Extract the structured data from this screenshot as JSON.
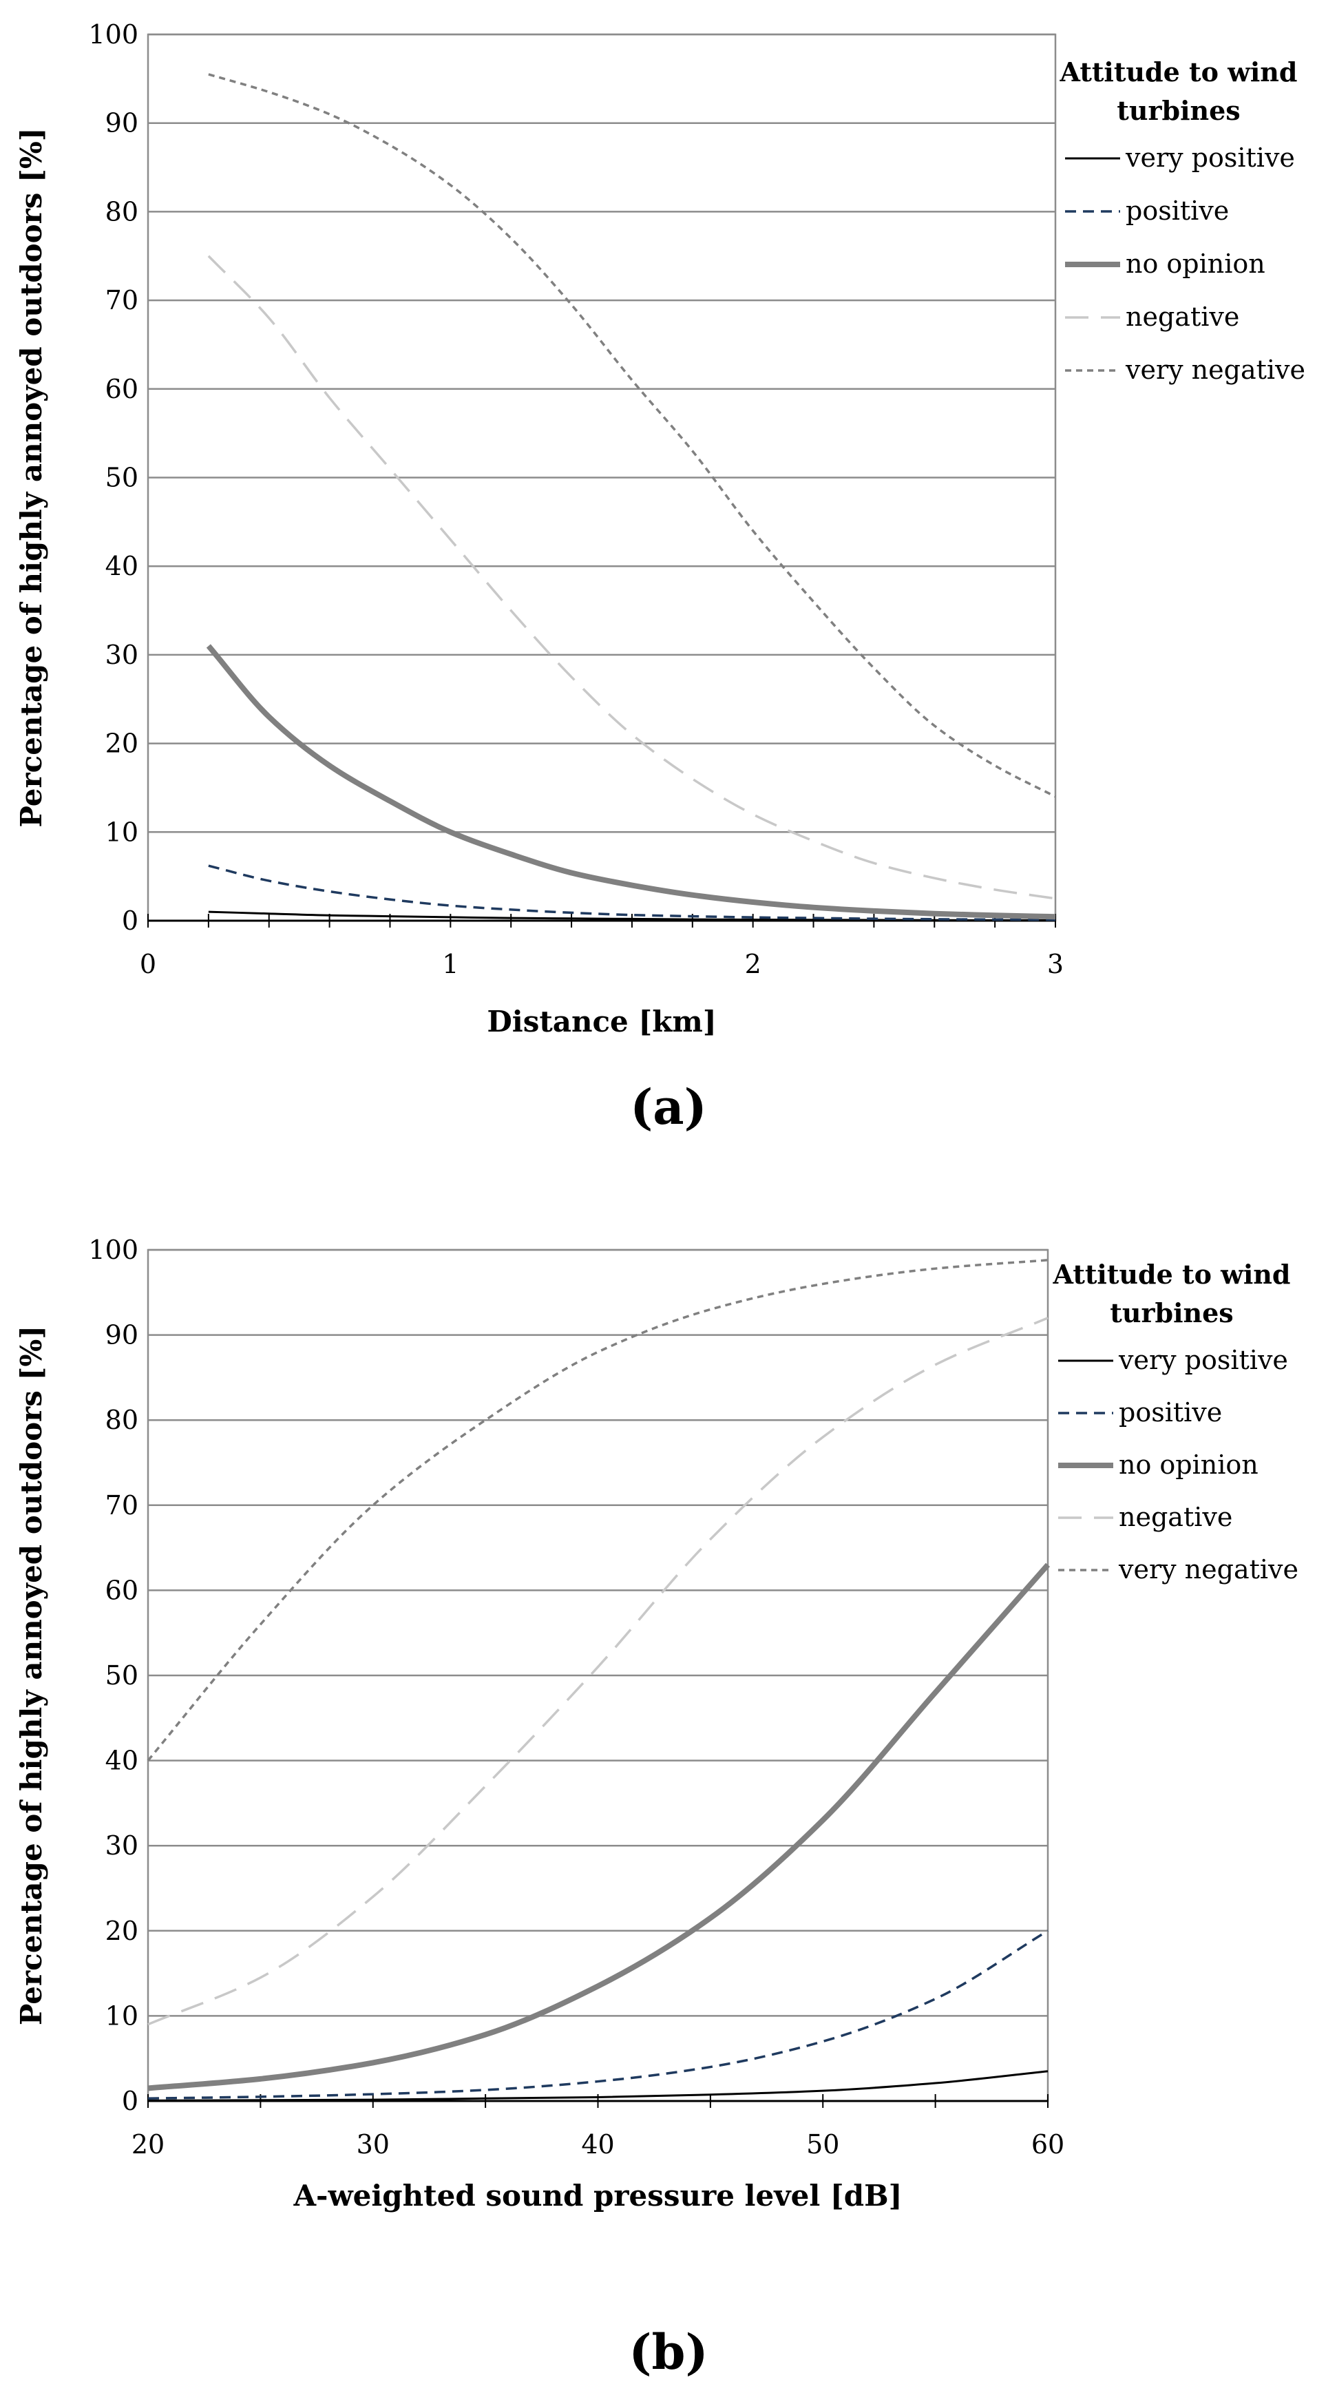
{
  "figure_labels": [
    "(a)",
    "(b)"
  ],
  "chart_data": [
    {
      "type": "line",
      "panel_label": "(a)",
      "xlabel": "Distance [km]",
      "ylabel": "Percentage of highly annoyed outdoors [%]",
      "xlim": [
        0,
        3
      ],
      "ylim": [
        0,
        100
      ],
      "x_ticks": [
        0,
        1,
        2,
        3
      ],
      "y_ticks": [
        0,
        10,
        20,
        30,
        40,
        50,
        60,
        70,
        80,
        90,
        100
      ],
      "grid": true,
      "legend_title": "Attitude to wind turbines",
      "legend_position": "right",
      "x": [
        0.2,
        0.4,
        0.6,
        0.8,
        1.0,
        1.2,
        1.4,
        1.6,
        1.8,
        2.0,
        2.2,
        2.4,
        2.6,
        2.8,
        3.0
      ],
      "series": [
        {
          "name": "very positive",
          "style": "solid-thin",
          "color": "#000000",
          "values": [
            1.0,
            0.8,
            0.6,
            0.5,
            0.4,
            0.3,
            0.25,
            0.2,
            0.15,
            0.12,
            0.1,
            0.08,
            0.06,
            0.05,
            0.05
          ]
        },
        {
          "name": "positive",
          "style": "dashed-dark",
          "color": "#1f3a5f",
          "values": [
            6.2,
            4.5,
            3.3,
            2.4,
            1.7,
            1.25,
            0.9,
            0.65,
            0.5,
            0.38,
            0.3,
            0.22,
            0.17,
            0.13,
            0.1
          ]
        },
        {
          "name": "no opinion",
          "style": "solid-thick",
          "color": "#808080",
          "values": [
            31,
            23,
            17.5,
            13.5,
            10,
            7.5,
            5.4,
            4.0,
            2.9,
            2.1,
            1.5,
            1.1,
            0.8,
            0.6,
            0.45
          ]
        },
        {
          "name": "negative",
          "style": "longdash-light",
          "color": "#c8c8c8",
          "values": [
            75,
            68,
            59,
            51,
            43,
            35,
            27.5,
            21,
            16,
            12,
            9,
            6.5,
            4.8,
            3.5,
            2.5
          ]
        },
        {
          "name": "very negative",
          "style": "shortdash-grey",
          "color": "#808080",
          "values": [
            95.5,
            93.5,
            91,
            87.5,
            83,
            77,
            69.5,
            61,
            53,
            44,
            36,
            28.5,
            22,
            17.5,
            14
          ]
        }
      ]
    },
    {
      "type": "line",
      "panel_label": "(b)",
      "xlabel": "A-weighted sound pressure level  [dB]",
      "ylabel": "Percentage of highly annoyed outdoors [%]",
      "xlim": [
        20,
        60
      ],
      "ylim": [
        0,
        100
      ],
      "x_ticks": [
        20,
        30,
        40,
        50,
        60
      ],
      "y_ticks": [
        0,
        10,
        20,
        30,
        40,
        50,
        60,
        70,
        80,
        90,
        100
      ],
      "grid": true,
      "legend_title": "Attitude to wind turbines",
      "legend_position": "right",
      "x": [
        20,
        25,
        30,
        35,
        40,
        45,
        50,
        55,
        60
      ],
      "series": [
        {
          "name": "very positive",
          "style": "solid-thin",
          "color": "#000000",
          "values": [
            0.05,
            0.1,
            0.15,
            0.3,
            0.45,
            0.75,
            1.2,
            2.1,
            3.5
          ]
        },
        {
          "name": "positive",
          "style": "dashed-dark",
          "color": "#1f3a5f",
          "values": [
            0.3,
            0.5,
            0.8,
            1.3,
            2.3,
            4.0,
            7.0,
            12.0,
            20.0
          ]
        },
        {
          "name": "no opinion",
          "style": "solid-thick",
          "color": "#808080",
          "values": [
            1.5,
            2.6,
            4.5,
            7.8,
            13.5,
            21.5,
            33,
            48,
            63
          ]
        },
        {
          "name": "negative",
          "style": "longdash-light",
          "color": "#c8c8c8",
          "values": [
            9,
            14.5,
            24,
            37,
            51,
            66,
            78,
            86.5,
            92
          ]
        },
        {
          "name": "very negative",
          "style": "shortdash-grey",
          "color": "#808080",
          "values": [
            40,
            56,
            70,
            80,
            88,
            93,
            96,
            97.8,
            98.8
          ]
        }
      ]
    }
  ]
}
